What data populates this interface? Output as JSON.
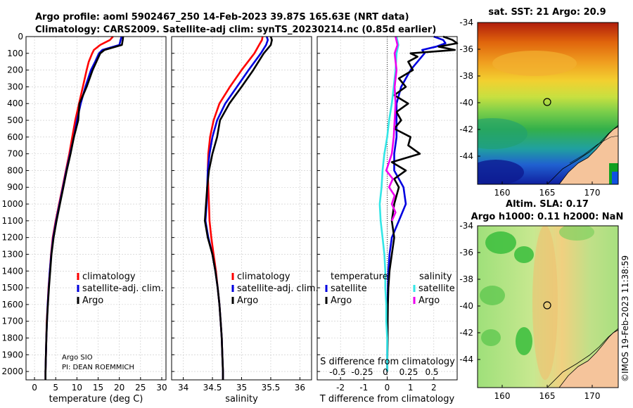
{
  "header": {
    "line1": "Argo profile: aoml 5902467_250 14-Feb-2023 39.87S 165.63E (NRT data)",
    "line2": "Climatology: CARS2009. Satellite-adj clim: synTS_20230214.nc (0.85d earlier)"
  },
  "colors": {
    "climatology": "#ff0000",
    "satellite_adj": "#0000e0",
    "argo": "#000000",
    "temp_diff_satellite": "#0000e0",
    "sal_diff_satellite": "#33e6e6",
    "sal_diff_argo": "#ee00ee",
    "land": "#f5c49b"
  },
  "chart_data": [
    {
      "id": "temperature",
      "type": "line",
      "xlabel": "temperature (deg C)",
      "xlim": [
        -2,
        31
      ],
      "xticks": [
        0,
        5,
        10,
        15,
        20,
        25,
        30
      ],
      "ylim": [
        0,
        2050
      ],
      "yticks": [
        0,
        100,
        200,
        300,
        400,
        500,
        600,
        700,
        800,
        900,
        1000,
        1100,
        1200,
        1300,
        1400,
        1500,
        1600,
        1700,
        1800,
        1900,
        2000
      ],
      "legend": [
        "climatology",
        "satellite-adj. clim.",
        "Argo"
      ],
      "notes": [
        "Argo SIO",
        "PI: DEAN ROEMMICH"
      ],
      "series": [
        {
          "name": "climatology",
          "color": "#ff0000",
          "depth": [
            0,
            20,
            50,
            80,
            100,
            150,
            200,
            300,
            400,
            500,
            600,
            700,
            800,
            900,
            1000,
            1100,
            1200,
            1300,
            1400,
            1500,
            1600,
            1700,
            1800,
            1900,
            2000,
            2050
          ],
          "values": [
            18.5,
            17.8,
            15.5,
            14.0,
            13.6,
            12.8,
            12.3,
            11.4,
            10.5,
            9.6,
            8.9,
            8.2,
            7.4,
            6.6,
            5.8,
            5.0,
            4.3,
            3.9,
            3.6,
            3.3,
            3.1,
            2.9,
            2.8,
            2.7,
            2.6,
            2.6
          ]
        },
        {
          "name": "satellite-adj. clim.",
          "color": "#0000e0",
          "depth": [
            0,
            20,
            50,
            80,
            100,
            150,
            200,
            300,
            400,
            500,
            600,
            700,
            800,
            900,
            1000,
            1100,
            1200,
            1300,
            1400,
            1500,
            1600,
            1700,
            1800,
            1900,
            2000,
            2050
          ],
          "values": [
            20.5,
            20.3,
            20.0,
            16.0,
            15.2,
            14.3,
            13.3,
            12.0,
            10.9,
            10.0,
            9.3,
            8.4,
            7.5,
            6.7,
            5.9,
            5.1,
            4.4,
            3.95,
            3.6,
            3.35,
            3.1,
            2.95,
            2.8,
            2.7,
            2.6,
            2.6
          ]
        },
        {
          "name": "Argo",
          "color": "#000000",
          "depth": [
            0,
            20,
            50,
            80,
            100,
            150,
            200,
            300,
            400,
            500,
            600,
            700,
            800,
            900,
            1000,
            1100,
            1200,
            1300,
            1400,
            1500,
            1600,
            1700,
            1800,
            1900,
            2000,
            2050
          ],
          "values": [
            20.9,
            20.8,
            20.6,
            16.5,
            15.5,
            14.6,
            13.7,
            12.3,
            10.6,
            10.3,
            9.3,
            8.5,
            7.6,
            6.8,
            6.0,
            5.2,
            4.5,
            4.0,
            3.7,
            3.4,
            3.15,
            2.95,
            2.8,
            2.7,
            2.6,
            2.6
          ]
        }
      ]
    },
    {
      "id": "salinity",
      "type": "line",
      "xlabel": "salinity",
      "xlim": [
        33.8,
        36.2
      ],
      "xticks": [
        34,
        34.5,
        35,
        35.5,
        36
      ],
      "ylim": [
        0,
        2050
      ],
      "legend": [
        "climatology",
        "satellite-adj. clim.",
        "Argo"
      ],
      "series": [
        {
          "name": "climatology",
          "color": "#ff0000",
          "depth": [
            0,
            20,
            50,
            100,
            200,
            300,
            400,
            500,
            600,
            700,
            800,
            900,
            1000,
            1100,
            1200,
            1300,
            1400,
            1500,
            1600,
            1700,
            1800,
            1900,
            2000,
            2050
          ],
          "values": [
            35.36,
            35.35,
            35.3,
            35.22,
            35.0,
            34.8,
            34.62,
            34.52,
            34.46,
            34.43,
            34.42,
            34.43,
            34.44,
            34.45,
            34.48,
            34.52,
            34.56,
            34.59,
            34.62,
            34.64,
            34.66,
            34.67,
            34.68,
            34.68
          ]
        },
        {
          "name": "satellite-adj. clim.",
          "color": "#0000e0",
          "depth": [
            0,
            20,
            50,
            100,
            200,
            300,
            400,
            500,
            600,
            700,
            800,
            900,
            1000,
            1100,
            1200,
            1300,
            1400,
            1500,
            1600,
            1700,
            1800,
            1900,
            2000,
            2050
          ],
          "values": [
            35.43,
            35.45,
            35.42,
            35.33,
            35.12,
            34.92,
            34.72,
            34.58,
            34.5,
            34.45,
            34.42,
            34.41,
            34.4,
            34.38,
            34.43,
            34.5,
            34.55,
            34.59,
            34.62,
            34.64,
            34.66,
            34.67,
            34.68,
            34.68
          ]
        },
        {
          "name": "Argo",
          "color": "#000000",
          "depth": [
            0,
            20,
            50,
            100,
            200,
            300,
            400,
            500,
            600,
            700,
            800,
            900,
            1000,
            1100,
            1200,
            1300,
            1400,
            1500,
            1600,
            1700,
            1800,
            1900,
            2000,
            2050
          ],
          "values": [
            35.5,
            35.52,
            35.5,
            35.38,
            35.2,
            35.0,
            34.79,
            34.63,
            34.58,
            34.5,
            34.44,
            34.41,
            34.39,
            34.37,
            34.42,
            34.5,
            34.55,
            34.59,
            34.62,
            34.64,
            34.66,
            34.67,
            34.68,
            34.68
          ]
        }
      ]
    },
    {
      "id": "differences",
      "type": "line",
      "xlabel": "T difference from climatology",
      "xlabel_top": "S difference from climatology",
      "xlim": [
        -3,
        3
      ],
      "xticks": [
        -2,
        -1,
        0,
        1,
        2
      ],
      "xticks_s": [
        "-0.5",
        "-0.25",
        "0",
        "0.25",
        "0.5"
      ],
      "ylim": [
        0,
        2050
      ],
      "legend_temperature_title": "temperature",
      "legend_salinity_title": "salinity",
      "legend_temperature": [
        "satellite",
        "Argo"
      ],
      "legend_salinity": [
        "satellite",
        "Argo"
      ],
      "series": [
        {
          "name": "T satellite",
          "color": "#0000e0",
          "depth": [
            0,
            20,
            40,
            60,
            80,
            100,
            200,
            300,
            400,
            500,
            600,
            700,
            800,
            900,
            1000,
            1100,
            1200,
            1300,
            1400,
            1500,
            1600,
            1700,
            1800,
            1900,
            2000
          ],
          "values": [
            2.0,
            2.4,
            2.5,
            2.1,
            1.5,
            1.6,
            1.0,
            0.6,
            0.4,
            0.4,
            0.4,
            0.3,
            0.3,
            0.7,
            0.8,
            0.5,
            0.2,
            0.1,
            0.05,
            0.03,
            0.02,
            0.02,
            0.01,
            0.0,
            0.0
          ]
        },
        {
          "name": "T Argo",
          "color": "#000000",
          "depth": [
            0,
            20,
            40,
            60,
            80,
            100,
            120,
            150,
            200,
            250,
            300,
            350,
            400,
            450,
            500,
            550,
            600,
            650,
            700,
            750,
            800,
            850,
            900,
            1000,
            1100,
            1200,
            1300,
            1400,
            1500,
            1600,
            1700,
            1800,
            1900,
            2000
          ],
          "values": [
            2.4,
            2.8,
            3.0,
            2.2,
            2.9,
            1.0,
            1.3,
            0.9,
            1.1,
            0.5,
            0.8,
            0.3,
            0.9,
            0.4,
            0.6,
            0.3,
            1.0,
            0.9,
            1.4,
            0.2,
            0.8,
            0.3,
            0.5,
            0.3,
            0.2,
            0.3,
            0.2,
            0.1,
            0.05,
            0.03,
            0.02,
            0.02,
            0.01,
            0.0
          ]
        },
        {
          "name": "S satellite",
          "color": "#33e6e6",
          "depth": [
            0,
            50,
            100,
            200,
            300,
            400,
            500,
            600,
            700,
            800,
            900,
            1000,
            1100,
            1200,
            1300,
            1400,
            1500,
            1600,
            1700,
            1800,
            1900,
            2000
          ],
          "values": [
            0.1,
            0.12,
            0.1,
            0.09,
            0.07,
            0.05,
            0.02,
            0.0,
            -0.03,
            -0.05,
            -0.06,
            -0.08,
            -0.07,
            -0.05,
            -0.03,
            -0.02,
            -0.02,
            -0.01,
            -0.01,
            0.0,
            0.0,
            0.0
          ]
        },
        {
          "name": "S Argo",
          "color": "#ee00ee",
          "depth": [
            0,
            50,
            100,
            200,
            300,
            400,
            500,
            600,
            700,
            800,
            850,
            900,
            950,
            1000,
            1050,
            1100
          ],
          "values": [
            0.09,
            0.11,
            0.08,
            0.1,
            0.08,
            0.09,
            0.08,
            0.07,
            0.05,
            -0.01,
            0.06,
            0.02,
            0.08,
            0.05,
            0.09,
            0.05
          ]
        }
      ]
    }
  ],
  "maps": {
    "sst": {
      "title": "sat. SST: 21 Argo: 20.9",
      "yticks": [
        "-34",
        "-36",
        "-38",
        "-40",
        "-42",
        "-44"
      ],
      "xticks": [
        "160",
        "165",
        "170"
      ]
    },
    "sla": {
      "title1": "Altim. SLA: 0.17",
      "title2": "Argo h1000: 0.11 h2000: NaN",
      "yticks": [
        "-34",
        "-36",
        "-38",
        "-40",
        "-42",
        "-44"
      ],
      "xticks": [
        "160",
        "165",
        "170"
      ]
    }
  },
  "footer": {
    "credit": "©IMOS 19-Feb-2023 11:38:59"
  }
}
